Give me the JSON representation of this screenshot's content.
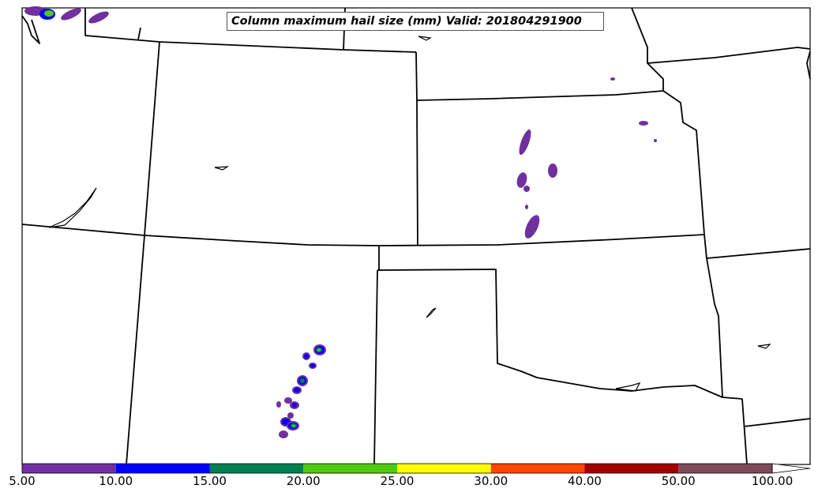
{
  "title": "Column maximum hail size (mm) Valid: 201804291900",
  "colorbar": {
    "colors": [
      "#7030a0",
      "#0000ff",
      "#008050",
      "#50c814",
      "#ffff00",
      "#ff4500",
      "#a00000",
      "#7f4a5a"
    ],
    "extend_color": "#ffffff",
    "labels": [
      "5.00",
      "10.00",
      "15.00",
      "20.00",
      "25.00",
      "30.00",
      "40.00",
      "50.00",
      "100.00"
    ]
  },
  "map": {
    "border_color": "#000000",
    "background": "#ffffff"
  }
}
